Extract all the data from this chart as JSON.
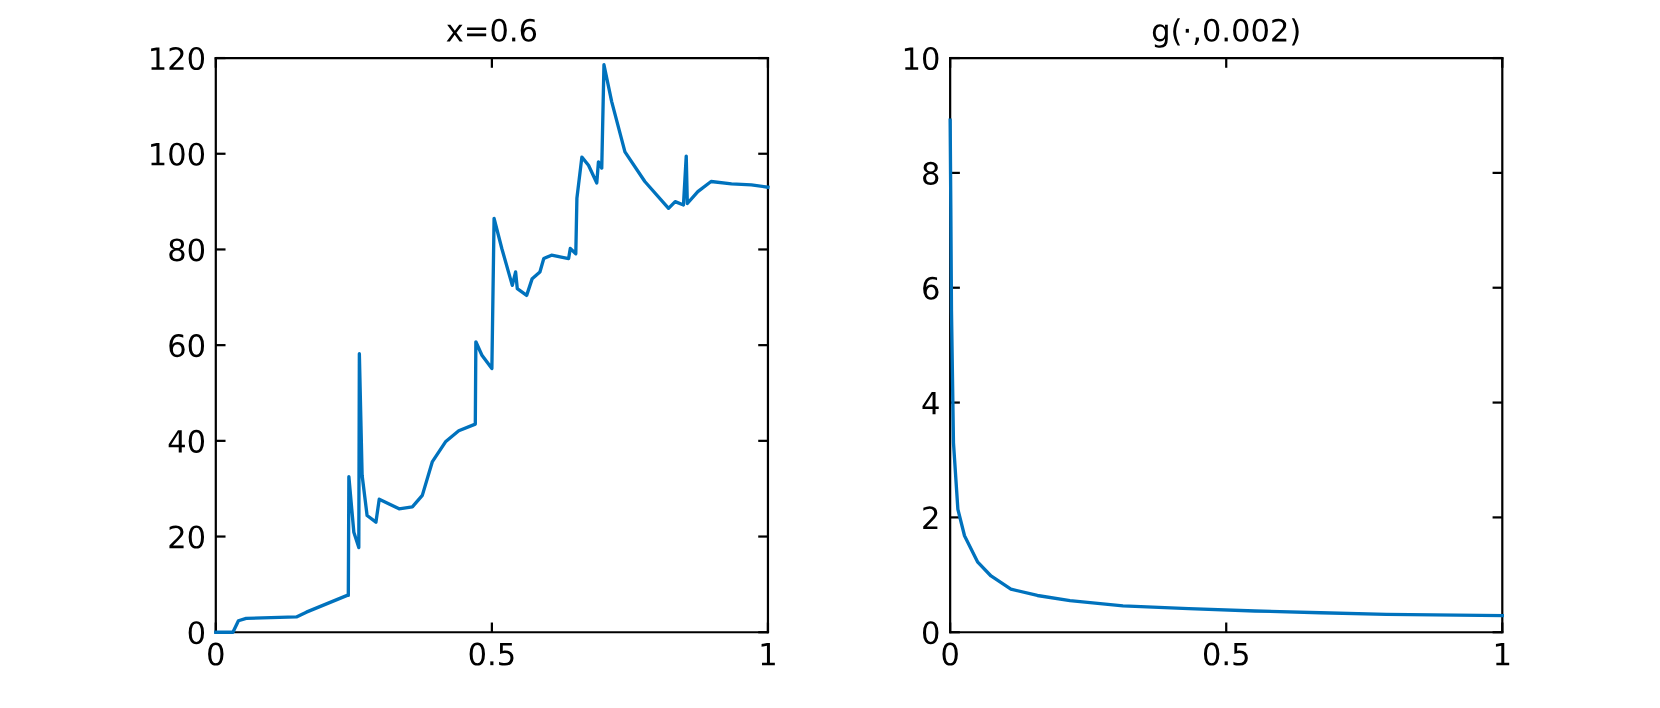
{
  "chart_data": [
    {
      "type": "line",
      "title": "x=0.6",
      "xlim": [
        0,
        1
      ],
      "ylim": [
        0,
        120
      ],
      "xticks": [
        0,
        0.5,
        1
      ],
      "yticks": [
        0,
        20,
        40,
        60,
        80,
        100,
        120
      ],
      "grid": false,
      "legend": false,
      "series": [
        {
          "color": "#0072bd",
          "x": [
            0,
            0.031,
            0.041,
            0.055,
            0.146,
            0.164,
            0.238,
            0.24,
            0.241,
            0.25,
            0.259,
            0.26,
            0.265,
            0.274,
            0.29,
            0.296,
            0.332,
            0.356,
            0.374,
            0.392,
            0.416,
            0.44,
            0.47,
            0.471,
            0.482,
            0.5,
            0.504,
            0.518,
            0.537,
            0.543,
            0.546,
            0.563,
            0.573,
            0.587,
            0.594,
            0.608,
            0.639,
            0.642,
            0.652,
            0.654,
            0.663,
            0.675,
            0.69,
            0.693,
            0.699,
            0.703,
            0.717,
            0.741,
            0.777,
            0.82,
            0.832,
            0.847,
            0.852,
            0.854,
            0.873,
            0.897,
            0.934,
            0.97,
            1
          ],
          "values": [
            0,
            0,
            2.4,
            2.9,
            3.2,
            4.2,
            7.7,
            7.7,
            32.5,
            20.9,
            17.7,
            58.2,
            32.8,
            24.4,
            23,
            27.8,
            25.8,
            26.2,
            28.6,
            35.6,
            39.8,
            42.1,
            43.5,
            60.7,
            57.9,
            55.1,
            86.5,
            80.2,
            72.5,
            75.3,
            71.8,
            70.4,
            73.9,
            75.3,
            78.1,
            78.8,
            78.1,
            80.2,
            79.1,
            90.7,
            99.3,
            97.6,
            93.9,
            98.3,
            97,
            118.6,
            110.9,
            100.4,
            94.2,
            88.6,
            90,
            89.3,
            99.5,
            89.6,
            92.1,
            94.2,
            93.7,
            93.5,
            93
          ]
        }
      ]
    },
    {
      "type": "line",
      "title": "g(·,0.002)",
      "xlim": [
        0,
        1
      ],
      "ylim": [
        0,
        10
      ],
      "xticks": [
        0,
        0.5,
        1
      ],
      "yticks": [
        0,
        2,
        4,
        6,
        8,
        10
      ],
      "grid": false,
      "legend": false,
      "series": [
        {
          "color": "#0072bd",
          "x": [
            0,
            0.0012,
            0.0024,
            0.006,
            0.014,
            0.026,
            0.05,
            0.074,
            0.11,
            0.158,
            0.217,
            0.313,
            0.432,
            0.552,
            0.671,
            0.79,
            1
          ],
          "values": [
            8.92,
            7.4,
            5.6,
            3.3,
            2.14,
            1.68,
            1.22,
            0.98,
            0.75,
            0.64,
            0.55,
            0.46,
            0.41,
            0.37,
            0.34,
            0.31,
            0.29
          ]
        }
      ]
    }
  ]
}
